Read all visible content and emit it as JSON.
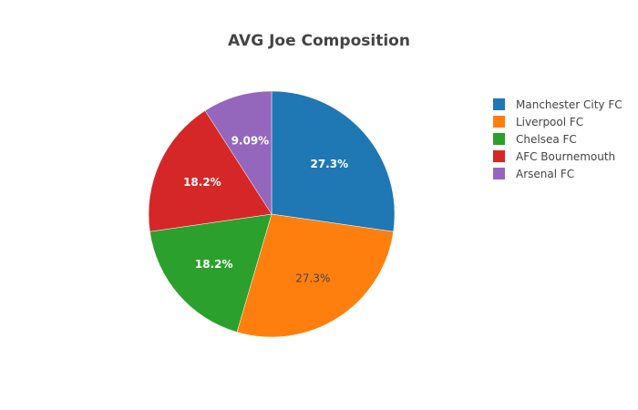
{
  "chart_data": {
    "type": "pie",
    "title": "AVG Joe Composition",
    "labels": [
      "Manchester City FC",
      "Liverpool FC",
      "Chelsea FC",
      "AFC Bournemouth",
      "Arsenal FC"
    ],
    "values": [
      3,
      3,
      2,
      2,
      1
    ],
    "percent_labels": [
      "27.3%",
      "27.3%",
      "18.2%",
      "18.2%",
      "9.09%"
    ],
    "colors": [
      "#1f77b4",
      "#ff7f0e",
      "#2ca02c",
      "#d62728",
      "#9467bd"
    ],
    "label_colors": [
      "#ffffff",
      "#444444",
      "#ffffff",
      "#ffffff",
      "#ffffff"
    ],
    "direction": "clockwise",
    "legend_position": "right"
  }
}
